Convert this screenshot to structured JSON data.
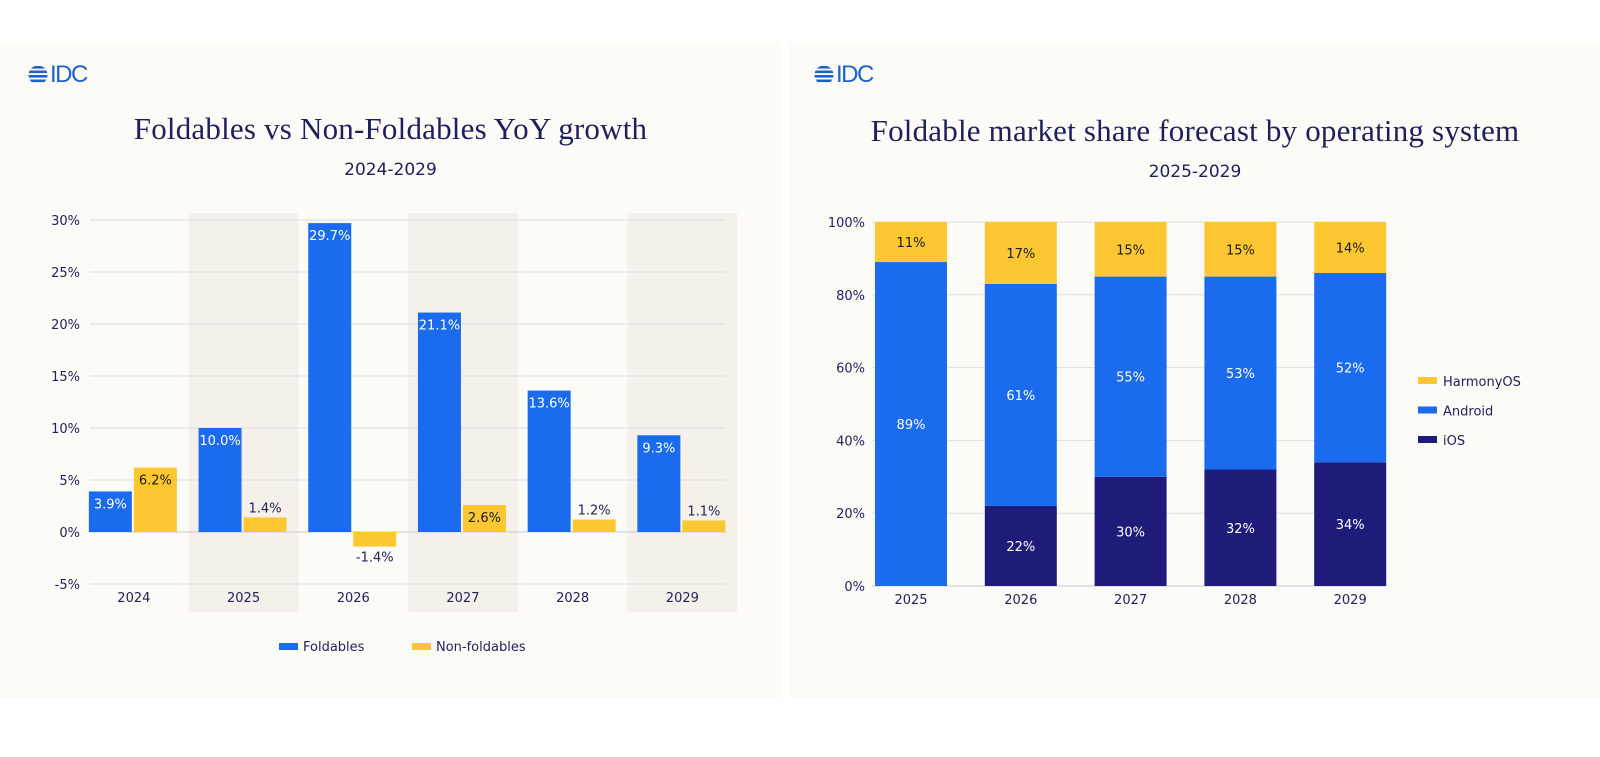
{
  "brand": {
    "logo_text": "IDC",
    "logo_color": "#1d62c9"
  },
  "colors": {
    "foldables": "#1a6bed",
    "non_foldables": "#fdc731",
    "harmonyos": "#fdc731",
    "android": "#1a6bed",
    "ios": "#1f1c79",
    "text": "#1f1f5c",
    "band": "#f5f1ea",
    "grid": "#dcdce4"
  },
  "left": {
    "title": "Foldables vs Non-Foldables YoY growth",
    "subtitle": "2024-2029"
  },
  "right": {
    "title": "Foldable market share forecast by operating system",
    "subtitle": "2025-2029"
  },
  "chart_data": [
    {
      "type": "bar",
      "title": "Foldables vs Non-Foldables YoY growth",
      "subtitle": "2024-2029",
      "xlabel": "",
      "ylabel": "",
      "categories": [
        "2024",
        "2025",
        "2026",
        "2027",
        "2028",
        "2029"
      ],
      "series": [
        {
          "name": "Foldables",
          "values": [
            3.9,
            10.0,
            29.7,
            21.1,
            13.6,
            9.3
          ],
          "labels": [
            "3.9%",
            "10.0%",
            "29.7%",
            "21.1%",
            "13.6%",
            "9.3%"
          ]
        },
        {
          "name": "Non-foldables",
          "values": [
            6.2,
            1.4,
            -1.4,
            2.6,
            1.2,
            1.1
          ],
          "labels": [
            "6.2%",
            "1.4%",
            "-1.4%",
            "2.6%",
            "1.2%",
            "1.1%"
          ]
        }
      ],
      "ylim": [
        -5,
        30
      ],
      "yticks": [
        30,
        25,
        20,
        15,
        10,
        5,
        0,
        -5
      ],
      "ytick_labels": [
        "30%",
        "25%",
        "20%",
        "15%",
        "10%",
        "5%",
        "0%",
        "-5%"
      ],
      "shaded_categories": [
        "2025",
        "2027",
        "2029"
      ],
      "grid": true,
      "legend": "bottom"
    },
    {
      "type": "bar",
      "stacked": true,
      "title": "Foldable market share forecast by operating system",
      "subtitle": "2025-2029",
      "xlabel": "",
      "ylabel": "",
      "categories": [
        "2025",
        "2026",
        "2027",
        "2028",
        "2029"
      ],
      "series": [
        {
          "name": "iOS",
          "values": [
            0,
            22,
            30,
            32,
            34
          ],
          "labels": [
            "",
            "22%",
            "30%",
            "32%",
            "34%"
          ]
        },
        {
          "name": "Android",
          "values": [
            89,
            61,
            55,
            53,
            52
          ],
          "labels": [
            "89%",
            "61%",
            "55%",
            "53%",
            "52%"
          ]
        },
        {
          "name": "HarmonyOS",
          "values": [
            11,
            17,
            15,
            15,
            14
          ],
          "labels": [
            "11%",
            "17%",
            "15%",
            "15%",
            "14%"
          ]
        }
      ],
      "legend_order": [
        "HarmonyOS",
        "Android",
        "iOS"
      ],
      "ylim": [
        0,
        100
      ],
      "yticks": [
        100,
        80,
        60,
        40,
        20,
        0
      ],
      "ytick_labels": [
        "100%",
        "80%",
        "60%",
        "40%",
        "20%",
        "0%"
      ],
      "grid": true,
      "legend": "right"
    }
  ]
}
